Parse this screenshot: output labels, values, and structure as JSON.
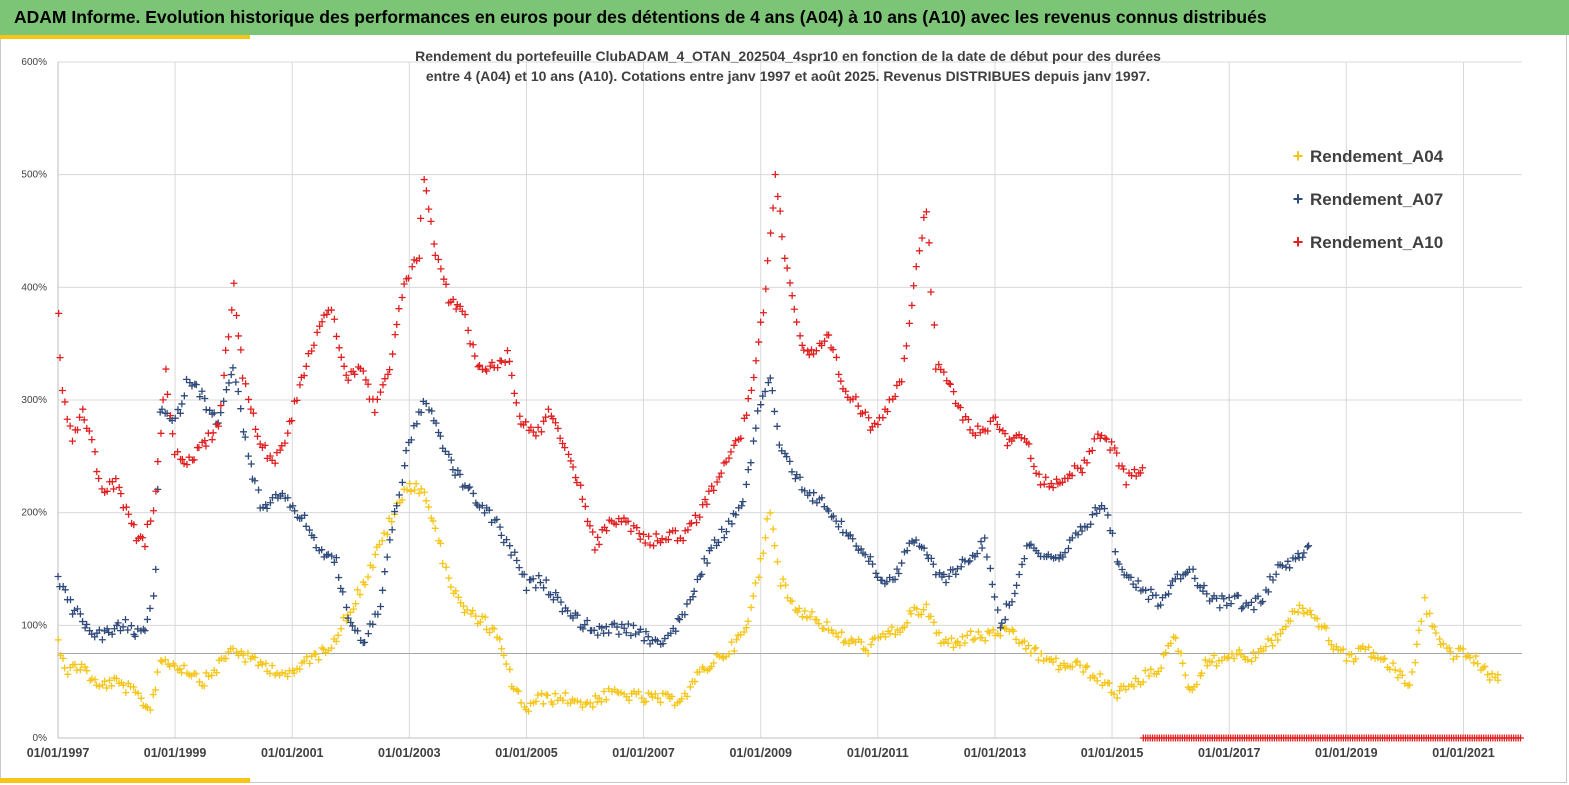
{
  "header": {
    "title": "ADAM Informe. Evolution historique des performances en euros pour des détentions de 4 ans (A04) à 10 ans (A10) avec les revenus connus distribués"
  },
  "colors": {
    "header_bg": "#7cc576",
    "accent": "#f5c518",
    "A04": "#f5c518",
    "A07": "#2f4a7a",
    "A10": "#e02020",
    "grid": "#d9d9d9"
  },
  "chart_data": {
    "type": "scatter",
    "title_line1": "Rendement du portefeuille ClubADAM_4_OTAN_202504_4spr10  en fonction de la date de début pour des durées",
    "title_line2": "entre 4 (A04) et 10 ans (A10). Cotations entre janv 1997 et août 2025. Revenus DISTRIBUES depuis janv 1997.",
    "marker": "+",
    "y_ticks": [
      "0%",
      "100%",
      "200%",
      "300%",
      "400%",
      "500%",
      "600%"
    ],
    "ylim": [
      0,
      600
    ],
    "x_ticks": [
      "01/01/1997",
      "01/01/1999",
      "01/01/2001",
      "01/01/2003",
      "01/01/2005",
      "01/01/2007",
      "01/01/2009",
      "01/01/2011",
      "01/01/2013",
      "01/01/2015",
      "01/01/2017",
      "01/01/2019",
      "01/01/2021"
    ],
    "xlim": [
      "1997-01-01",
      "2022-01-01"
    ],
    "reference_line": 75,
    "legend_position": "top-right",
    "series": [
      {
        "name": "Rendement_A04",
        "color": "#f5c518",
        "points": [
          [
            "1997-01-01",
            85
          ],
          [
            "1997-03-01",
            60
          ],
          [
            "1997-06-01",
            65
          ],
          [
            "1997-09-01",
            45
          ],
          [
            "1997-12-01",
            50
          ],
          [
            "1998-03-01",
            45
          ],
          [
            "1998-06-01",
            35
          ],
          [
            "1998-08-01",
            25
          ],
          [
            "1998-10-01",
            70
          ],
          [
            "1999-01-01",
            65
          ],
          [
            "1999-04-01",
            60
          ],
          [
            "1999-07-01",
            50
          ],
          [
            "1999-10-01",
            65
          ],
          [
            "2000-01-01",
            80
          ],
          [
            "2000-04-01",
            70
          ],
          [
            "2000-07-01",
            65
          ],
          [
            "2000-10-01",
            60
          ],
          [
            "2001-01-01",
            55
          ],
          [
            "2001-04-01",
            70
          ],
          [
            "2001-07-01",
            75
          ],
          [
            "2001-10-01",
            90
          ],
          [
            "2002-01-01",
            115
          ],
          [
            "2002-04-01",
            140
          ],
          [
            "2002-07-01",
            170
          ],
          [
            "2002-10-01",
            200
          ],
          [
            "2003-01-01",
            225
          ],
          [
            "2003-04-01",
            220
          ],
          [
            "2003-07-01",
            175
          ],
          [
            "2003-10-01",
            130
          ],
          [
            "2004-01-01",
            110
          ],
          [
            "2004-04-01",
            105
          ],
          [
            "2004-07-01",
            90
          ],
          [
            "2004-10-01",
            50
          ],
          [
            "2005-01-01",
            25
          ],
          [
            "2005-04-01",
            35
          ],
          [
            "2005-07-01",
            35
          ],
          [
            "2005-10-01",
            35
          ],
          [
            "2006-01-01",
            30
          ],
          [
            "2006-04-01",
            35
          ],
          [
            "2006-07-01",
            40
          ],
          [
            "2006-10-01",
            38
          ],
          [
            "2007-01-01",
            35
          ],
          [
            "2007-04-01",
            35
          ],
          [
            "2007-07-01",
            33
          ],
          [
            "2007-10-01",
            40
          ],
          [
            "2008-01-01",
            60
          ],
          [
            "2008-04-01",
            70
          ],
          [
            "2008-07-01",
            80
          ],
          [
            "2008-10-01",
            95
          ],
          [
            "2009-01-01",
            155
          ],
          [
            "2009-03-01",
            205
          ],
          [
            "2009-05-01",
            140
          ],
          [
            "2009-08-01",
            115
          ],
          [
            "2009-11-01",
            110
          ],
          [
            "2010-02-01",
            100
          ],
          [
            "2010-05-01",
            90
          ],
          [
            "2010-08-01",
            85
          ],
          [
            "2010-11-01",
            80
          ],
          [
            "2011-02-01",
            90
          ],
          [
            "2011-05-01",
            95
          ],
          [
            "2011-08-01",
            110
          ],
          [
            "2011-11-01",
            115
          ],
          [
            "2012-02-01",
            85
          ],
          [
            "2012-05-01",
            85
          ],
          [
            "2012-08-01",
            90
          ],
          [
            "2012-11-01",
            90
          ],
          [
            "2013-02-01",
            95
          ],
          [
            "2013-05-01",
            90
          ],
          [
            "2013-08-01",
            80
          ],
          [
            "2013-11-01",
            70
          ],
          [
            "2014-02-01",
            65
          ],
          [
            "2014-05-01",
            65
          ],
          [
            "2014-08-01",
            60
          ],
          [
            "2014-11-01",
            50
          ],
          [
            "2015-02-01",
            40
          ],
          [
            "2015-05-01",
            45
          ],
          [
            "2015-08-01",
            55
          ],
          [
            "2015-11-01",
            65
          ],
          [
            "2016-02-01",
            90
          ],
          [
            "2016-05-01",
            40
          ],
          [
            "2016-08-01",
            65
          ],
          [
            "2016-11-01",
            70
          ],
          [
            "2017-02-01",
            75
          ],
          [
            "2017-05-01",
            70
          ],
          [
            "2017-08-01",
            80
          ],
          [
            "2017-11-01",
            90
          ],
          [
            "2018-02-01",
            110
          ],
          [
            "2018-05-01",
            115
          ],
          [
            "2018-08-01",
            100
          ],
          [
            "2018-11-01",
            80
          ],
          [
            "2019-02-01",
            70
          ],
          [
            "2019-05-01",
            80
          ],
          [
            "2019-08-01",
            70
          ],
          [
            "2019-11-01",
            60
          ],
          [
            "2020-02-01",
            45
          ],
          [
            "2020-05-01",
            120
          ],
          [
            "2020-08-01",
            85
          ],
          [
            "2020-11-01",
            75
          ],
          [
            "2021-02-01",
            75
          ],
          [
            "2021-05-01",
            60
          ],
          [
            "2021-08-01",
            52
          ]
        ]
      },
      {
        "name": "Rendement_A07",
        "color": "#2f4a7a",
        "points": [
          [
            "1997-01-01",
            145
          ],
          [
            "1997-03-01",
            120
          ],
          [
            "1997-06-01",
            105
          ],
          [
            "1997-09-01",
            90
          ],
          [
            "1997-12-01",
            95
          ],
          [
            "1998-03-01",
            100
          ],
          [
            "1998-06-01",
            90
          ],
          [
            "1998-08-01",
            110
          ],
          [
            "1998-09-01",
            150
          ],
          [
            "1998-10-01",
            290
          ],
          [
            "1999-01-01",
            280
          ],
          [
            "1999-04-01",
            320
          ],
          [
            "1999-07-01",
            300
          ],
          [
            "1999-10-01",
            280
          ],
          [
            "2000-01-01",
            330
          ],
          [
            "2000-04-01",
            250
          ],
          [
            "2000-07-01",
            200
          ],
          [
            "2000-10-01",
            215
          ],
          [
            "2001-01-01",
            205
          ],
          [
            "2001-04-01",
            190
          ],
          [
            "2001-07-01",
            165
          ],
          [
            "2001-10-01",
            155
          ],
          [
            "2002-01-01",
            100
          ],
          [
            "2002-04-01",
            85
          ],
          [
            "2002-07-01",
            120
          ],
          [
            "2002-10-01",
            200
          ],
          [
            "2003-01-01",
            260
          ],
          [
            "2003-04-01",
            300
          ],
          [
            "2003-07-01",
            270
          ],
          [
            "2003-10-01",
            240
          ],
          [
            "2004-01-01",
            220
          ],
          [
            "2004-04-01",
            205
          ],
          [
            "2004-07-01",
            190
          ],
          [
            "2004-10-01",
            165
          ],
          [
            "2005-01-01",
            135
          ],
          [
            "2005-04-01",
            140
          ],
          [
            "2005-07-01",
            125
          ],
          [
            "2005-10-01",
            110
          ],
          [
            "2006-01-01",
            100
          ],
          [
            "2006-04-01",
            95
          ],
          [
            "2006-07-01",
            97
          ],
          [
            "2006-10-01",
            97
          ],
          [
            "2007-01-01",
            90
          ],
          [
            "2007-04-01",
            85
          ],
          [
            "2007-07-01",
            95
          ],
          [
            "2007-10-01",
            115
          ],
          [
            "2008-01-01",
            150
          ],
          [
            "2008-04-01",
            175
          ],
          [
            "2008-07-01",
            190
          ],
          [
            "2008-10-01",
            220
          ],
          [
            "2009-01-01",
            300
          ],
          [
            "2009-03-01",
            320
          ],
          [
            "2009-05-01",
            260
          ],
          [
            "2009-08-01",
            235
          ],
          [
            "2009-11-01",
            215
          ],
          [
            "2010-02-01",
            210
          ],
          [
            "2010-05-01",
            190
          ],
          [
            "2010-08-01",
            175
          ],
          [
            "2010-11-01",
            160
          ],
          [
            "2011-02-01",
            140
          ],
          [
            "2011-05-01",
            145
          ],
          [
            "2011-08-01",
            175
          ],
          [
            "2011-11-01",
            165
          ],
          [
            "2012-02-01",
            140
          ],
          [
            "2012-05-01",
            150
          ],
          [
            "2012-08-01",
            160
          ],
          [
            "2012-11-01",
            175
          ],
          [
            "2013-02-01",
            100
          ],
          [
            "2013-05-01",
            130
          ],
          [
            "2013-08-01",
            175
          ],
          [
            "2013-11-01",
            160
          ],
          [
            "2014-02-01",
            155
          ],
          [
            "2014-05-01",
            175
          ],
          [
            "2014-08-01",
            190
          ],
          [
            "2014-11-01",
            210
          ],
          [
            "2015-02-01",
            160
          ],
          [
            "2015-05-01",
            140
          ],
          [
            "2015-08-01",
            130
          ],
          [
            "2015-11-01",
            120
          ],
          [
            "2016-02-01",
            145
          ],
          [
            "2016-05-01",
            150
          ],
          [
            "2016-08-01",
            130
          ],
          [
            "2016-11-01",
            120
          ],
          [
            "2017-02-01",
            125
          ],
          [
            "2017-05-01",
            115
          ],
          [
            "2017-08-01",
            125
          ],
          [
            "2017-11-01",
            155
          ],
          [
            "2018-02-01",
            155
          ],
          [
            "2018-05-01",
            170
          ]
        ]
      },
      {
        "name": "Rendement_A10",
        "color": "#e02020",
        "points": [
          [
            "1997-01-01",
            375
          ],
          [
            "1997-02-01",
            310
          ],
          [
            "1997-04-01",
            265
          ],
          [
            "1997-06-01",
            290
          ],
          [
            "1997-08-01",
            260
          ],
          [
            "1997-10-01",
            220
          ],
          [
            "1998-01-01",
            225
          ],
          [
            "1998-03-01",
            200
          ],
          [
            "1998-05-01",
            180
          ],
          [
            "1998-07-01",
            175
          ],
          [
            "1998-09-01",
            215
          ],
          [
            "1998-11-01",
            330
          ],
          [
            "1999-01-01",
            250
          ],
          [
            "1999-04-01",
            245
          ],
          [
            "1999-07-01",
            260
          ],
          [
            "1999-10-01",
            280
          ],
          [
            "2000-01-01",
            400
          ],
          [
            "2000-03-01",
            320
          ],
          [
            "2000-06-01",
            270
          ],
          [
            "2000-09-01",
            245
          ],
          [
            "2000-12-01",
            270
          ],
          [
            "2001-03-01",
            320
          ],
          [
            "2001-06-01",
            360
          ],
          [
            "2001-09-01",
            380
          ],
          [
            "2001-12-01",
            320
          ],
          [
            "2002-03-01",
            330
          ],
          [
            "2002-06-01",
            290
          ],
          [
            "2002-09-01",
            330
          ],
          [
            "2002-12-01",
            400
          ],
          [
            "2003-03-01",
            430
          ],
          [
            "2003-04-01",
            500
          ],
          [
            "2003-06-01",
            440
          ],
          [
            "2003-09-01",
            390
          ],
          [
            "2003-12-01",
            380
          ],
          [
            "2004-03-01",
            330
          ],
          [
            "2004-06-01",
            330
          ],
          [
            "2004-09-01",
            340
          ],
          [
            "2004-12-01",
            280
          ],
          [
            "2005-03-01",
            270
          ],
          [
            "2005-06-01",
            290
          ],
          [
            "2005-09-01",
            260
          ],
          [
            "2005-12-01",
            220
          ],
          [
            "2006-03-01",
            170
          ],
          [
            "2006-06-01",
            190
          ],
          [
            "2006-09-01",
            195
          ],
          [
            "2006-12-01",
            180
          ],
          [
            "2007-03-01",
            175
          ],
          [
            "2007-06-01",
            180
          ],
          [
            "2007-09-01",
            180
          ],
          [
            "2007-12-01",
            195
          ],
          [
            "2008-03-01",
            220
          ],
          [
            "2008-06-01",
            250
          ],
          [
            "2008-09-01",
            270
          ],
          [
            "2008-12-01",
            330
          ],
          [
            "2009-02-01",
            400
          ],
          [
            "2009-04-01",
            500
          ],
          [
            "2009-06-01",
            430
          ],
          [
            "2009-08-01",
            380
          ],
          [
            "2009-10-01",
            340
          ],
          [
            "2009-12-01",
            340
          ],
          [
            "2010-03-01",
            355
          ],
          [
            "2010-06-01",
            310
          ],
          [
            "2010-09-01",
            295
          ],
          [
            "2010-12-01",
            275
          ],
          [
            "2011-03-01",
            295
          ],
          [
            "2011-06-01",
            320
          ],
          [
            "2011-09-01",
            420
          ],
          [
            "2011-11-01",
            470
          ],
          [
            "2012-01-01",
            330
          ],
          [
            "2012-04-01",
            310
          ],
          [
            "2012-07-01",
            280
          ],
          [
            "2012-10-01",
            270
          ],
          [
            "2013-01-01",
            285
          ],
          [
            "2013-04-01",
            260
          ],
          [
            "2013-07-01",
            270
          ],
          [
            "2013-10-01",
            230
          ],
          [
            "2014-01-01",
            225
          ],
          [
            "2014-04-01",
            235
          ],
          [
            "2014-07-01",
            240
          ],
          [
            "2014-10-01",
            265
          ],
          [
            "2015-01-01",
            260
          ],
          [
            "2015-04-01",
            230
          ],
          [
            "2015-07-01",
            240
          ]
        ]
      }
    ]
  },
  "legend": {
    "a04": "Rendement_A04",
    "a07": "Rendement_A07",
    "a10": "Rendement_A10",
    "marker": "+"
  }
}
